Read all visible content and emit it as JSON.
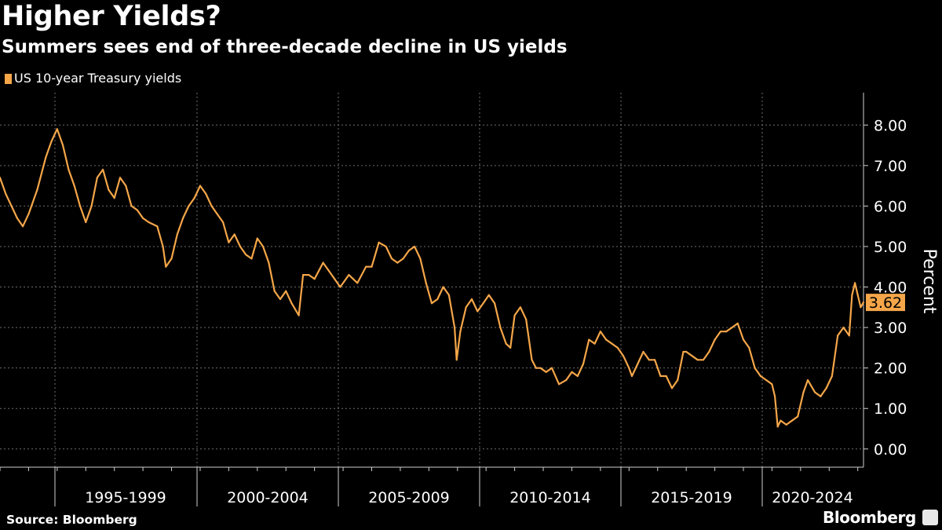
{
  "header": {
    "title": "Higher Yields?",
    "subtitle": "Summers sees end of three-decade decline in US yields"
  },
  "footer": {
    "source": "Source: Bloomberg",
    "brand": "Bloomberg"
  },
  "chart_data": {
    "type": "line",
    "title": "Higher Yields?",
    "subtitle": "Summers sees end of three-decade decline in US yields",
    "ylabel": "Percent",
    "xlabel": "",
    "x_tick_labels": [
      "1995-1999",
      "2000-2004",
      "2005-2009",
      "2010-2014",
      "2015-2019",
      "2020-2024"
    ],
    "y_tick_labels": [
      "0.00",
      "1.00",
      "2.00",
      "3.00",
      "4.00",
      "5.00",
      "6.00",
      "7.00",
      "8.00"
    ],
    "y_ticks": [
      0,
      1,
      2,
      3,
      4,
      5,
      6,
      7,
      8
    ],
    "xlim": [
      1993.0,
      2023.2
    ],
    "ylim": [
      -0.45,
      8.8
    ],
    "grid": true,
    "legend_position": "top-left",
    "last_value_label": "3.62",
    "colors": {
      "series": "#f5a649",
      "background": "#000000",
      "grid": "#6e6e6e",
      "text": "#ffffff"
    },
    "series": [
      {
        "name": "US 10-year Treasury yields",
        "x": [
          1993.0,
          1993.2,
          1993.4,
          1993.6,
          1993.8,
          1994.0,
          1994.3,
          1994.6,
          1994.8,
          1995.0,
          1995.2,
          1995.4,
          1995.6,
          1995.8,
          1996.0,
          1996.2,
          1996.4,
          1996.6,
          1996.8,
          1997.0,
          1997.2,
          1997.4,
          1997.6,
          1997.8,
          1998.0,
          1998.2,
          1998.5,
          1998.7,
          1998.8,
          1999.0,
          1999.2,
          1999.4,
          1999.6,
          1999.8,
          2000.0,
          2000.2,
          2000.4,
          2000.6,
          2000.8,
          2001.0,
          2001.2,
          2001.4,
          2001.6,
          2001.8,
          2002.0,
          2002.2,
          2002.4,
          2002.6,
          2002.8,
          2003.0,
          2003.2,
          2003.45,
          2003.6,
          2003.8,
          2004.0,
          2004.3,
          2004.5,
          2004.7,
          2004.9,
          2005.2,
          2005.5,
          2005.8,
          2006.0,
          2006.25,
          2006.5,
          2006.7,
          2006.9,
          2007.1,
          2007.3,
          2007.5,
          2007.7,
          2007.9,
          2008.1,
          2008.3,
          2008.5,
          2008.7,
          2008.9,
          2008.97,
          2009.1,
          2009.3,
          2009.5,
          2009.7,
          2009.9,
          2010.1,
          2010.3,
          2010.5,
          2010.7,
          2010.85,
          2011.0,
          2011.2,
          2011.4,
          2011.6,
          2011.75,
          2011.9,
          2012.1,
          2012.3,
          2012.55,
          2012.8,
          2013.0,
          2013.2,
          2013.4,
          2013.6,
          2013.8,
          2014.0,
          2014.2,
          2014.4,
          2014.6,
          2014.8,
          2015.0,
          2015.1,
          2015.3,
          2015.5,
          2015.7,
          2015.9,
          2016.1,
          2016.3,
          2016.5,
          2016.7,
          2016.9,
          2017.0,
          2017.2,
          2017.4,
          2017.6,
          2017.8,
          2018.0,
          2018.2,
          2018.4,
          2018.6,
          2018.8,
          2019.0,
          2019.2,
          2019.4,
          2019.6,
          2019.8,
          2020.0,
          2020.1,
          2020.2,
          2020.3,
          2020.5,
          2020.7,
          2020.9,
          2021.1,
          2021.25,
          2021.5,
          2021.7,
          2021.9,
          2022.1,
          2022.3,
          2022.5,
          2022.7,
          2022.8,
          2022.9,
          2023.0,
          2023.1,
          2023.2
        ],
        "values": [
          6.7,
          6.3,
          6.0,
          5.7,
          5.5,
          5.8,
          6.4,
          7.2,
          7.6,
          7.9,
          7.5,
          6.9,
          6.5,
          6.0,
          5.6,
          6.0,
          6.7,
          6.9,
          6.4,
          6.2,
          6.7,
          6.5,
          6.0,
          5.9,
          5.7,
          5.6,
          5.5,
          5.0,
          4.5,
          4.7,
          5.3,
          5.7,
          6.0,
          6.2,
          6.5,
          6.3,
          6.0,
          5.8,
          5.6,
          5.1,
          5.3,
          5.0,
          4.8,
          4.7,
          5.2,
          5.0,
          4.6,
          3.9,
          3.7,
          3.9,
          3.6,
          3.3,
          4.3,
          4.3,
          4.2,
          4.6,
          4.4,
          4.2,
          4.0,
          4.3,
          4.1,
          4.5,
          4.5,
          5.1,
          5.0,
          4.7,
          4.6,
          4.7,
          4.9,
          5.0,
          4.7,
          4.1,
          3.6,
          3.7,
          4.0,
          3.8,
          3.0,
          2.2,
          2.9,
          3.5,
          3.7,
          3.4,
          3.6,
          3.8,
          3.6,
          3.0,
          2.6,
          2.5,
          3.3,
          3.5,
          3.2,
          2.2,
          2.0,
          2.0,
          1.9,
          2.0,
          1.6,
          1.7,
          1.9,
          1.8,
          2.1,
          2.7,
          2.6,
          2.9,
          2.7,
          2.6,
          2.5,
          2.3,
          2.0,
          1.8,
          2.1,
          2.4,
          2.2,
          2.2,
          1.8,
          1.8,
          1.5,
          1.7,
          2.4,
          2.4,
          2.3,
          2.2,
          2.2,
          2.4,
          2.7,
          2.9,
          2.9,
          3.0,
          3.1,
          2.7,
          2.5,
          2.0,
          1.8,
          1.7,
          1.6,
          1.3,
          0.55,
          0.7,
          0.6,
          0.7,
          0.8,
          1.4,
          1.7,
          1.4,
          1.3,
          1.5,
          1.8,
          2.8,
          3.0,
          2.8,
          3.8,
          4.1,
          3.8,
          3.5,
          3.62
        ]
      }
    ]
  }
}
